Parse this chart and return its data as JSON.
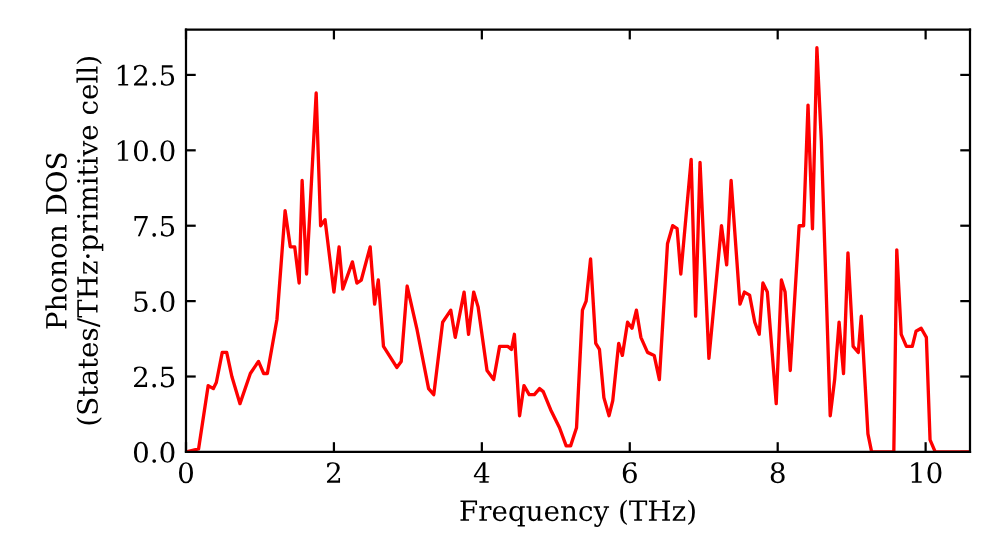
{
  "chart_data": {
    "type": "line",
    "xlabel": "Frequency (THz)",
    "ylabel": "Phonon DOS\n(States/THz·primitive cell)",
    "xlim": [
      0,
      10.6
    ],
    "ylim": [
      0,
      14.0
    ],
    "xticks": [
      0,
      2,
      4,
      6,
      8,
      10
    ],
    "yticks": [
      {
        "value": 0,
        "label": "0.0"
      },
      {
        "value": 2.5,
        "label": "2.5"
      },
      {
        "value": 5,
        "label": "5.0"
      },
      {
        "value": 7.5,
        "label": "7.5"
      },
      {
        "value": 10,
        "label": "10.0"
      },
      {
        "value": 12.5,
        "label": "12.5"
      }
    ],
    "grid": false,
    "legend": false,
    "marker": "none",
    "line_style": "solid",
    "series": [
      {
        "color": "#ff0000",
        "x": [
          0,
          0.17,
          0.3,
          0.37,
          0.41,
          0.49,
          0.55,
          0.62,
          0.73,
          0.87,
          0.98,
          1.05,
          1.1,
          1.23,
          1.34,
          1.41,
          1.47,
          1.53,
          1.57,
          1.63,
          1.76,
          1.82,
          1.88,
          2.0,
          2.07,
          2.12,
          2.25,
          2.31,
          2.37,
          2.49,
          2.55,
          2.6,
          2.67,
          2.85,
          2.91,
          2.99,
          3.12,
          3.28,
          3.35,
          3.47,
          3.58,
          3.64,
          3.76,
          3.82,
          3.89,
          3.95,
          4.07,
          4.16,
          4.24,
          4.35,
          4.4,
          4.44,
          4.51,
          4.57,
          4.64,
          4.71,
          4.78,
          4.83,
          4.93,
          5.05,
          5.14,
          5.2,
          5.28,
          5.36,
          5.41,
          5.47,
          5.54,
          5.59,
          5.65,
          5.72,
          5.77,
          5.85,
          5.9,
          5.97,
          6.03,
          6.09,
          6.15,
          6.24,
          6.33,
          6.4,
          6.51,
          6.58,
          6.64,
          6.69,
          6.83,
          6.89,
          6.95,
          7.07,
          7.24,
          7.31,
          7.37,
          7.49,
          7.55,
          7.62,
          7.69,
          7.75,
          7.8,
          7.86,
          7.98,
          8.05,
          8.1,
          8.17,
          8.29,
          8.35,
          8.41,
          8.47,
          8.53,
          8.59,
          8.71,
          8.77,
          8.83,
          8.89,
          8.95,
          9.02,
          9.09,
          9.13,
          9.22,
          9.27,
          9.57,
          9.61,
          9.67,
          9.74,
          9.82,
          9.87,
          9.94,
          10.01,
          10.06,
          10.13,
          10.6
        ],
        "values": [
          0,
          0.1,
          2.2,
          2.1,
          2.3,
          3.3,
          3.3,
          2.5,
          1.6,
          2.6,
          3.0,
          2.6,
          2.6,
          4.4,
          8.0,
          6.8,
          6.8,
          5.6,
          9.0,
          5.9,
          11.9,
          7.5,
          7.7,
          5.3,
          6.8,
          5.4,
          6.3,
          5.6,
          5.7,
          6.8,
          4.9,
          5.7,
          3.5,
          2.8,
          3.0,
          5.5,
          4.1,
          2.1,
          1.9,
          4.3,
          4.7,
          3.8,
          5.3,
          3.9,
          5.3,
          4.8,
          2.7,
          2.4,
          3.5,
          3.5,
          3.4,
          3.9,
          1.2,
          2.2,
          1.9,
          1.9,
          2.1,
          2.0,
          1.4,
          0.8,
          0.2,
          0.2,
          0.8,
          4.7,
          5.0,
          6.4,
          3.6,
          3.4,
          1.8,
          1.2,
          1.7,
          3.6,
          3.2,
          4.3,
          4.1,
          4.7,
          3.8,
          3.3,
          3.2,
          2.4,
          6.9,
          7.5,
          7.4,
          5.9,
          9.7,
          4.5,
          9.6,
          3.1,
          7.5,
          6.2,
          9.0,
          4.9,
          5.3,
          5.2,
          4.3,
          3.9,
          5.6,
          5.3,
          1.6,
          5.7,
          5.3,
          2.7,
          7.5,
          7.5,
          11.5,
          7.4,
          13.4,
          10.3,
          1.2,
          2.4,
          4.3,
          2.6,
          6.6,
          3.5,
          3.3,
          4.5,
          0.6,
          0,
          0,
          6.7,
          3.9,
          3.5,
          3.5,
          4.0,
          4.1,
          3.8,
          0.4,
          0,
          0
        ]
      }
    ]
  }
}
